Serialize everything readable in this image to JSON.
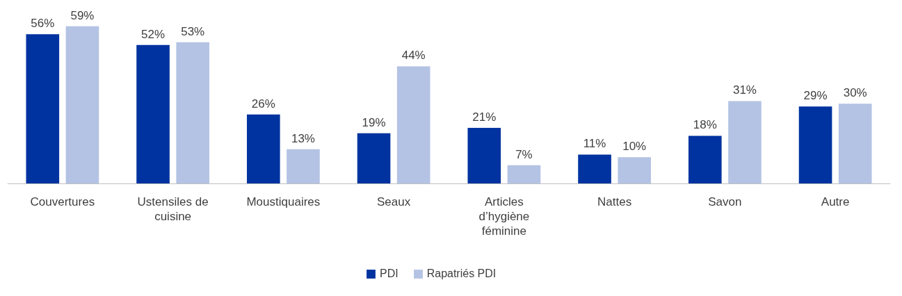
{
  "chart_data": {
    "type": "bar",
    "categories": [
      "Couvertures",
      "Ustensiles de cuisine",
      "Moustiquaires",
      "Seaux",
      "Articles d’hygiène féminine",
      "Nattes",
      "Savon",
      "Autre"
    ],
    "series": [
      {
        "name": "PDI",
        "color": "#0033a0",
        "values": [
          56,
          52,
          26,
          19,
          21,
          11,
          18,
          29
        ],
        "value_labels": [
          "56%",
          "52%",
          "26%",
          "19%",
          "21%",
          "11%",
          "18%",
          "29%"
        ]
      },
      {
        "name": "Rapatriés PDI",
        "color": "#b4c3e4",
        "values": [
          59,
          53,
          13,
          44,
          7,
          10,
          31,
          30
        ],
        "value_labels": [
          "59%",
          "53%",
          "13%",
          "44%",
          "7%",
          "10%",
          "31%",
          "30%"
        ]
      }
    ],
    "legend": "bottom"
  }
}
